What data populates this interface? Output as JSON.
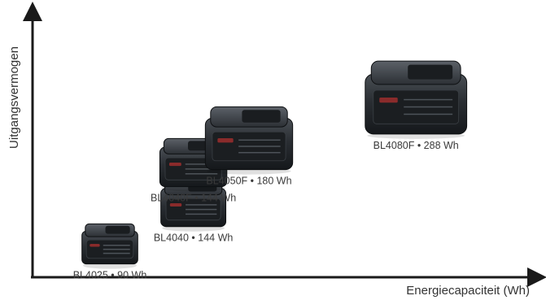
{
  "chart_data": {
    "type": "scatter",
    "xlabel": "Energiecapaciteit (Wh)",
    "ylabel": "Uitgangsvermogen",
    "points": [
      {
        "id": "bl4025",
        "label": "BL4025 • 90 Wh",
        "model": "BL4025",
        "energy_wh": 90,
        "power_rank": 1,
        "size": 0.55
      },
      {
        "id": "bl4040",
        "label": "BL4040 • 144 Wh",
        "model": "BL4040",
        "energy_wh": 144,
        "power_rank": 2,
        "size": 0.64
      },
      {
        "id": "bl4040f",
        "label": "BL4040F • 144 Wh",
        "model": "BL4040F",
        "energy_wh": 144,
        "power_rank": 3,
        "size": 0.66
      },
      {
        "id": "bl4050f",
        "label": "BL4050F • 180 Wh",
        "model": "BL4050F",
        "energy_wh": 180,
        "power_rank": 3.6,
        "size": 0.86
      },
      {
        "id": "bl4080f",
        "label": "BL4080F • 288 Wh",
        "model": "BL4080F",
        "energy_wh": 288,
        "power_rank": 4.6,
        "size": 1.0
      }
    ],
    "colors": {
      "axis": "#1a1a1a",
      "battery_body": "#2b2f33",
      "battery_dark": "#15181b",
      "accent_red": "#8a2b2b",
      "label": "#3a3a3a"
    }
  }
}
